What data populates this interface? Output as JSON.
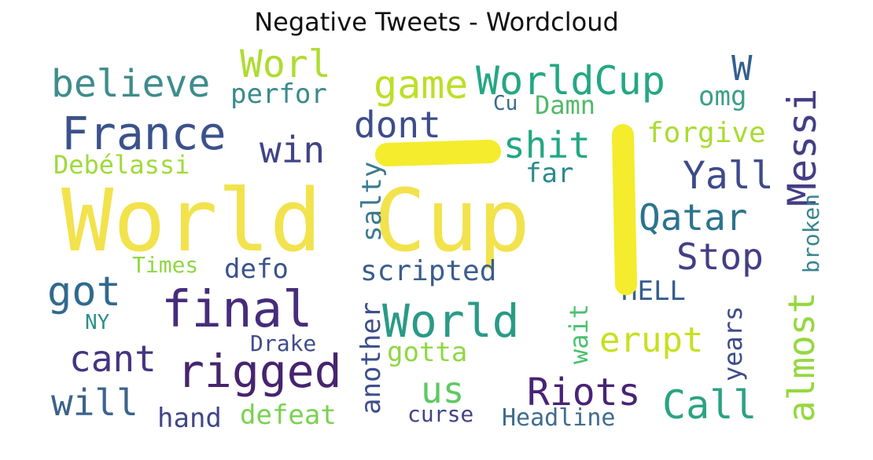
{
  "chart_data": {
    "type": "wordcloud",
    "title": "Negative Tweets - Wordcloud",
    "words": [
      {
        "text": "World Cup",
        "color": "#f2e24c"
      },
      {
        "text": "final",
        "color": "#472c7a"
      },
      {
        "text": "France",
        "color": "#3b528b"
      },
      {
        "text": "rigged",
        "color": "#46246e"
      },
      {
        "text": "World",
        "color": "#2a9a86"
      },
      {
        "text": "WorldCup",
        "color": "#24a784"
      },
      {
        "text": "game",
        "color": "#bddf26"
      },
      {
        "text": "believe",
        "color": "#3f8c8c"
      },
      {
        "text": "Worl",
        "color": "#aedc31"
      },
      {
        "text": "got",
        "color": "#306a8e"
      },
      {
        "text": "Riots",
        "color": "#482475"
      },
      {
        "text": "Call",
        "color": "#2aa383"
      },
      {
        "text": "Yall",
        "color": "#3e4a89"
      },
      {
        "text": "Qatar",
        "color": "#2c738e"
      },
      {
        "text": "Stop",
        "color": "#433e85"
      },
      {
        "text": "shit",
        "color": "#22a884"
      },
      {
        "text": "dont",
        "color": "#3d4d8a"
      },
      {
        "text": "win",
        "color": "#404387"
      },
      {
        "text": "erupt",
        "color": "#c8e020"
      },
      {
        "text": "cant",
        "color": "#453581"
      },
      {
        "text": "will",
        "color": "#3b638c"
      },
      {
        "text": "us",
        "color": "#5ec962"
      },
      {
        "text": "scripted",
        "color": "#3b5e8d"
      },
      {
        "text": "defeat",
        "color": "#7ad151"
      },
      {
        "text": "hand",
        "color": "#404788"
      },
      {
        "text": "curse",
        "color": "#414487"
      },
      {
        "text": "Headline",
        "color": "#3e6d8e"
      },
      {
        "text": "gotta",
        "color": "#90d743"
      },
      {
        "text": "defo",
        "color": "#3a548c"
      },
      {
        "text": "Times",
        "color": "#8fd744"
      },
      {
        "text": "Drake",
        "color": "#414d89"
      },
      {
        "text": "NY",
        "color": "#2f8f8a"
      },
      {
        "text": "Debélassi",
        "color": "#9fda3a"
      },
      {
        "text": "perfor",
        "color": "#3a8a8c"
      },
      {
        "text": "Cu",
        "color": "#3b6a8c"
      },
      {
        "text": "Damn",
        "color": "#52b967"
      },
      {
        "text": "omg",
        "color": "#3b9f88"
      },
      {
        "text": "W",
        "color": "#34608d"
      },
      {
        "text": "forgive",
        "color": "#aadc32"
      },
      {
        "text": "far",
        "color": "#2a8a8e"
      },
      {
        "text": "HELL",
        "color": "#355e8d"
      },
      {
        "text": "Messi",
        "color": "#433e85"
      },
      {
        "text": "almost",
        "color": "#95d840"
      },
      {
        "text": "broken",
        "color": "#39858c"
      },
      {
        "text": "years",
        "color": "#3e4c8a"
      },
      {
        "text": "wait",
        "color": "#4ac16d"
      },
      {
        "text": "another",
        "color": "#3d4f8b"
      },
      {
        "text": "salty",
        "color": "#3b7a8d"
      }
    ]
  }
}
